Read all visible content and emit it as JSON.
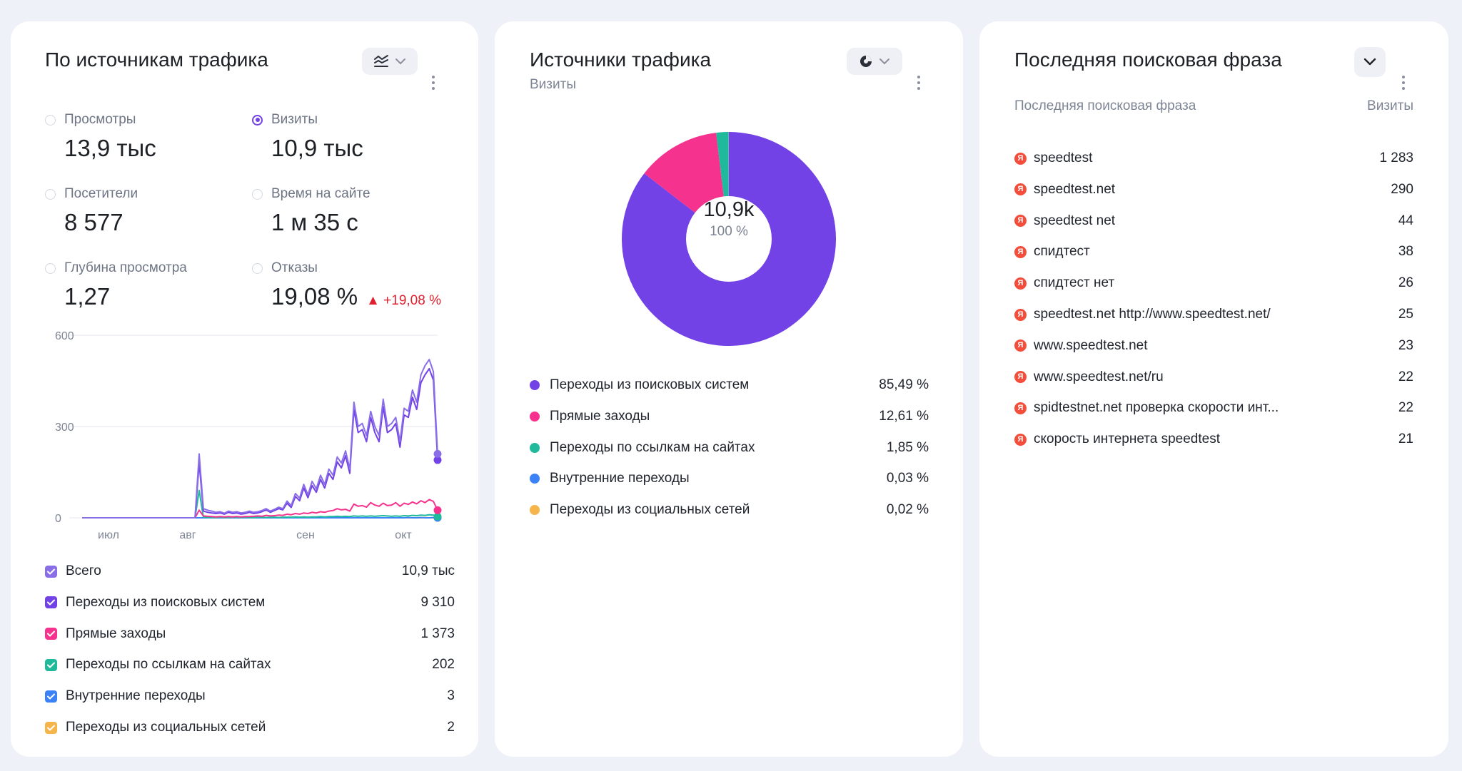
{
  "card1": {
    "title": "По источникам трафика",
    "metrics": [
      {
        "label": "Просмотры",
        "value": "13,9 тыс",
        "selected": false
      },
      {
        "label": "Визиты",
        "value": "10,9 тыс",
        "selected": true
      },
      {
        "label": "Посетители",
        "value": "8 577",
        "selected": false
      },
      {
        "label": "Время на сайте",
        "value": "1 м 35 с",
        "selected": false
      },
      {
        "label": "Глубина просмотра",
        "value": "1,27",
        "selected": false
      },
      {
        "label": "Отказы",
        "value": "19,08 %",
        "selected": false,
        "delta": "▲ +19,08 %"
      }
    ],
    "legend": [
      {
        "label": "Всего",
        "value": "10,9 тыс",
        "color": "#8a6ee8"
      },
      {
        "label": "Переходы из поисковых систем",
        "value": "9 310",
        "color": "#7242e6"
      },
      {
        "label": "Прямые заходы",
        "value": "1 373",
        "color": "#f5338f"
      },
      {
        "label": "Переходы по ссылкам на сайтах",
        "value": "202",
        "color": "#1fb99c"
      },
      {
        "label": "Внутренние переходы",
        "value": "3",
        "color": "#3b82f6"
      },
      {
        "label": "Переходы из социальных сетей",
        "value": "2",
        "color": "#f6b54a"
      }
    ]
  },
  "chart_data": [
    {
      "type": "line",
      "title": "",
      "x_ticks": [
        "июл",
        "авг",
        "сен",
        "окт"
      ],
      "y_ticks": [
        "600",
        "300",
        "0"
      ],
      "ylim": [
        0,
        600
      ],
      "series": [
        {
          "name": "Всего",
          "color": "#8a6ee8",
          "values": [
            0,
            0,
            0,
            0,
            0,
            0,
            0,
            0,
            0,
            0,
            0,
            0,
            0,
            0,
            0,
            0,
            0,
            0,
            0,
            0,
            0,
            0,
            0,
            0,
            0,
            0,
            0,
            0,
            210,
            30,
            25,
            22,
            18,
            20,
            15,
            22,
            18,
            20,
            16,
            18,
            22,
            18,
            20,
            24,
            30,
            22,
            28,
            35,
            30,
            55,
            40,
            80,
            65,
            110,
            75,
            120,
            95,
            140,
            110,
            160,
            140,
            200,
            180,
            220,
            160,
            380,
            300,
            310,
            270,
            350,
            300,
            270,
            390,
            300,
            310,
            330,
            250,
            360,
            350,
            420,
            380,
            470,
            500,
            520,
            480,
            210
          ]
        },
        {
          "name": "Переходы из поисковых систем",
          "color": "#7242e6",
          "values": [
            0,
            0,
            0,
            0,
            0,
            0,
            0,
            0,
            0,
            0,
            0,
            0,
            0,
            0,
            0,
            0,
            0,
            0,
            0,
            0,
            0,
            0,
            0,
            0,
            0,
            0,
            0,
            0,
            180,
            22,
            18,
            16,
            14,
            16,
            12,
            18,
            14,
            16,
            12,
            14,
            18,
            14,
            16,
            20,
            26,
            18,
            24,
            30,
            26,
            48,
            34,
            70,
            56,
            98,
            66,
            106,
            84,
            126,
            98,
            146,
            126,
            184,
            164,
            204,
            146,
            355,
            280,
            290,
            250,
            330,
            280,
            250,
            365,
            280,
            290,
            310,
            232,
            338,
            330,
            396,
            356,
            444,
            470,
            490,
            452,
            190
          ]
        },
        {
          "name": "Прямые заходы",
          "color": "#f5338f",
          "values": [
            0,
            0,
            0,
            0,
            0,
            0,
            0,
            0,
            0,
            0,
            0,
            0,
            0,
            0,
            0,
            0,
            0,
            0,
            0,
            0,
            0,
            0,
            0,
            0,
            0,
            0,
            0,
            0,
            25,
            6,
            5,
            4,
            3,
            4,
            3,
            4,
            3,
            4,
            3,
            4,
            4,
            5,
            6,
            5,
            8,
            6,
            7,
            9,
            8,
            12,
            10,
            14,
            12,
            16,
            14,
            18,
            16,
            20,
            18,
            22,
            24,
            30,
            26,
            28,
            22,
            45,
            38,
            40,
            35,
            50,
            42,
            38,
            48,
            40,
            42,
            50,
            38,
            48,
            44,
            52,
            46,
            56,
            50,
            60,
            54,
            25
          ]
        },
        {
          "name": "Переходы по ссылкам на сайтах",
          "color": "#1fb99c",
          "values": [
            0,
            0,
            0,
            0,
            0,
            0,
            0,
            0,
            0,
            0,
            0,
            0,
            0,
            0,
            0,
            0,
            0,
            0,
            0,
            0,
            0,
            0,
            0,
            0,
            0,
            0,
            0,
            0,
            90,
            2,
            2,
            1,
            1,
            2,
            1,
            1,
            2,
            1,
            1,
            2,
            1,
            1,
            2,
            2,
            1,
            2,
            2,
            1,
            2,
            2,
            2,
            3,
            2,
            3,
            2,
            3,
            3,
            4,
            3,
            4,
            4,
            5,
            4,
            5,
            4,
            6,
            5,
            6,
            5,
            6,
            5,
            6,
            7,
            6,
            5,
            6,
            5,
            7,
            6,
            8,
            7,
            9,
            8,
            10,
            9,
            4
          ]
        },
        {
          "name": "Внутренние переходы",
          "color": "#3b82f6",
          "values": [
            0,
            0,
            0,
            0,
            0,
            0,
            0,
            0,
            0,
            0,
            0,
            0,
            0,
            0,
            0,
            0,
            0,
            0,
            0,
            0,
            0,
            0,
            0,
            0,
            0,
            0,
            0,
            0,
            0,
            0,
            0,
            0,
            0,
            0,
            0,
            0,
            0,
            0,
            0,
            0,
            0,
            0,
            0,
            0,
            0,
            0,
            0,
            0,
            0,
            0,
            0,
            0,
            0,
            0,
            0,
            0,
            0,
            0,
            0,
            0,
            0,
            0,
            0,
            0,
            0,
            0,
            0,
            0,
            0,
            0,
            0,
            0,
            0,
            0,
            0,
            0,
            0,
            0,
            1,
            0,
            0,
            1,
            0,
            0,
            1,
            0
          ]
        },
        {
          "name": "Переходы из социальных сетей",
          "color": "#f6b54a",
          "values": [
            0,
            0,
            0,
            0,
            0,
            0,
            0,
            0,
            0,
            0,
            0,
            0,
            0,
            0,
            0,
            0,
            0,
            0,
            0,
            0,
            0,
            0,
            0,
            0,
            0,
            0,
            0,
            0,
            0,
            0,
            0,
            0,
            0,
            0,
            0,
            0,
            0,
            0,
            0,
            0,
            0,
            0,
            0,
            0,
            0,
            0,
            0,
            0,
            0,
            0,
            0,
            0,
            0,
            0,
            0,
            0,
            0,
            0,
            0,
            0,
            0,
            0,
            0,
            0,
            0,
            0,
            0,
            0,
            0,
            0,
            0,
            0,
            0,
            0,
            0,
            0,
            0,
            0,
            0,
            0,
            0,
            0,
            1,
            0,
            0,
            0
          ]
        }
      ]
    },
    {
      "type": "pie",
      "title": "Источники трафика",
      "subtitle": "Визиты",
      "center_value": "10,9k",
      "center_percent": "100 %",
      "slices": [
        {
          "label": "Переходы из поисковых систем",
          "value": 85.49,
          "value_text": "85,49 %",
          "color": "#7242e6"
        },
        {
          "label": "Прямые заходы",
          "value": 12.61,
          "value_text": "12,61 %",
          "color": "#f5338f"
        },
        {
          "label": "Переходы по ссылкам на сайтах",
          "value": 1.85,
          "value_text": "1,85 %",
          "color": "#1fb99c"
        },
        {
          "label": "Внутренние переходы",
          "value": 0.03,
          "value_text": "0,03 %",
          "color": "#3b82f6"
        },
        {
          "label": "Переходы из социальных сетей",
          "value": 0.02,
          "value_text": "0,02 %",
          "color": "#f6b54a"
        }
      ]
    }
  ],
  "card3": {
    "title": "Последняя поисковая фраза",
    "col_phrase": "Последняя поисковая фраза",
    "col_visits": "Визиты",
    "rows": [
      {
        "phrase": "speedtest",
        "visits": "1 283"
      },
      {
        "phrase": "speedtest.net",
        "visits": "290"
      },
      {
        "phrase": "speedtest net",
        "visits": "44"
      },
      {
        "phrase": "спидтест",
        "visits": "38"
      },
      {
        "phrase": "спидтест нет",
        "visits": "26"
      },
      {
        "phrase": "speedtest.net http://www.speedtest.net/",
        "visits": "25"
      },
      {
        "phrase": "www.speedtest.net",
        "visits": "23"
      },
      {
        "phrase": "www.speedtest.net/ru",
        "visits": "22"
      },
      {
        "phrase": "spidtestnet.net проверка скорости инт...",
        "visits": "22"
      },
      {
        "phrase": "скорость интернета speedtest",
        "visits": "21"
      }
    ],
    "engine_icon": "Я"
  }
}
